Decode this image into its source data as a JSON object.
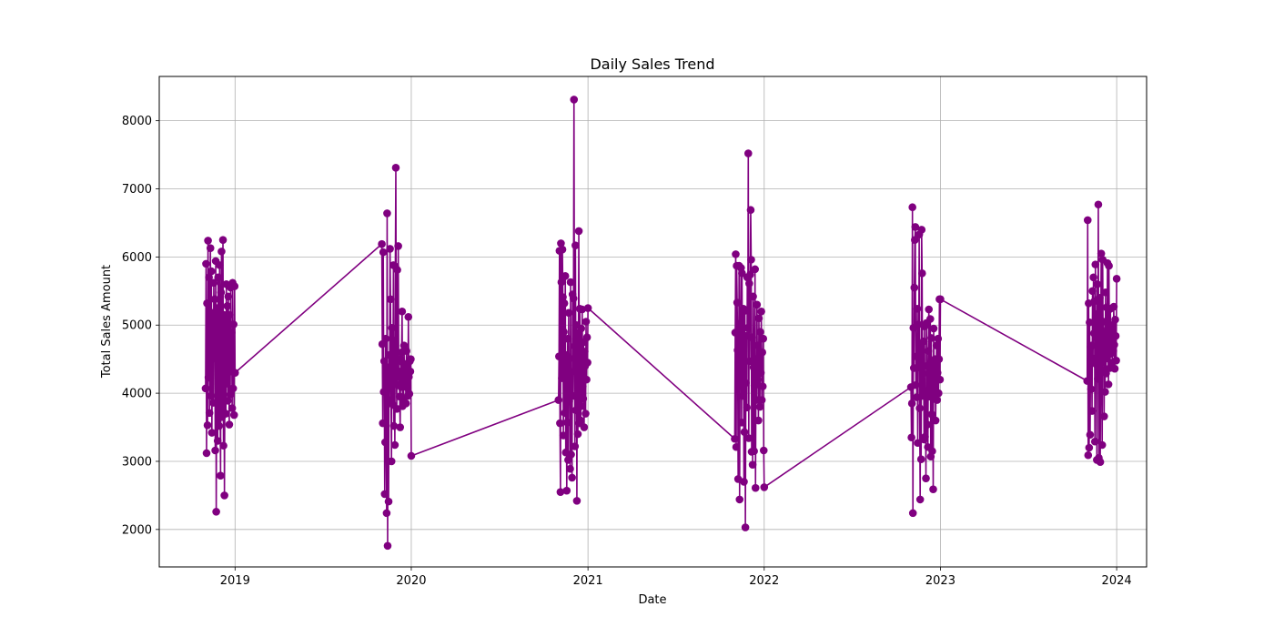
{
  "chart_data": {
    "type": "line",
    "title": "Daily Sales Trend",
    "xlabel": "Date",
    "ylabel": "Total Sales Amount",
    "grid": true,
    "legend": "none",
    "color": "#800080",
    "marker": "circle",
    "xlim": [
      "2018-07-28",
      "2024-03-03"
    ],
    "ylim": [
      1450,
      8650
    ],
    "x_ticks": [
      "2019",
      "2020",
      "2021",
      "2022",
      "2023",
      "2024"
    ],
    "y_ticks": [
      2000,
      3000,
      4000,
      5000,
      6000,
      7000,
      8000
    ],
    "series": [
      {
        "x": [
          "2018-11-01",
          "2018-11-02",
          "2018-11-03",
          "2018-11-04",
          "2018-11-05",
          "2018-11-06",
          "2018-11-07",
          "2018-11-08",
          "2018-11-09",
          "2018-11-10",
          "2018-11-11",
          "2018-11-12",
          "2018-11-13",
          "2018-11-14",
          "2018-11-15",
          "2018-11-16",
          "2018-11-17",
          "2018-11-18",
          "2018-11-19",
          "2018-11-20",
          "2018-11-21",
          "2018-11-22",
          "2018-11-23",
          "2018-11-24",
          "2018-11-25",
          "2018-11-26",
          "2018-11-27",
          "2018-11-28",
          "2018-11-29",
          "2018-11-30",
          "2018-12-01",
          "2018-12-02",
          "2018-12-03",
          "2018-12-04",
          "2018-12-05",
          "2018-12-06",
          "2018-12-07",
          "2018-12-08",
          "2018-12-09",
          "2018-12-10",
          "2018-12-11",
          "2018-12-12",
          "2018-12-13",
          "2018-12-14",
          "2018-12-15",
          "2018-12-16",
          "2018-12-17",
          "2018-12-18",
          "2018-12-19",
          "2018-12-20",
          "2018-12-21",
          "2018-12-22",
          "2018-12-23",
          "2018-12-24",
          "2018-12-25",
          "2018-12-26",
          "2018-12-27",
          "2018-12-28",
          "2018-12-29",
          "2018-12-30",
          "2018-12-31",
          "2019-01-01",
          "2019-11-01",
          "2019-11-02",
          "2019-11-03",
          "2019-11-04",
          "2019-11-05",
          "2019-11-06",
          "2019-11-07",
          "2019-11-08",
          "2019-11-09",
          "2019-11-10",
          "2019-11-11",
          "2019-11-12",
          "2019-11-13",
          "2019-11-14",
          "2019-11-15",
          "2019-11-16",
          "2019-11-17",
          "2019-11-18",
          "2019-11-19",
          "2019-11-20",
          "2019-11-21",
          "2019-11-22",
          "2019-11-23",
          "2019-11-24",
          "2019-11-25",
          "2019-11-26",
          "2019-11-27",
          "2019-11-28",
          "2019-11-29",
          "2019-11-30",
          "2019-12-01",
          "2019-12-02",
          "2019-12-03",
          "2019-12-04",
          "2019-12-05",
          "2019-12-06",
          "2019-12-07",
          "2019-12-08",
          "2019-12-09",
          "2019-12-10",
          "2019-12-11",
          "2019-12-12",
          "2019-12-13",
          "2019-12-14",
          "2019-12-15",
          "2019-12-16",
          "2019-12-17",
          "2019-12-18",
          "2019-12-19",
          "2019-12-20",
          "2019-12-21",
          "2019-12-22",
          "2019-12-23",
          "2019-12-24",
          "2019-12-25",
          "2019-12-26",
          "2019-12-27",
          "2019-12-28",
          "2019-12-29",
          "2019-12-30",
          "2019-12-31",
          "2020-01-01",
          "2020-11-01",
          "2020-11-02",
          "2020-11-03",
          "2020-11-04",
          "2020-11-05",
          "2020-11-06",
          "2020-11-07",
          "2020-11-08",
          "2020-11-09",
          "2020-11-10",
          "2020-11-11",
          "2020-11-12",
          "2020-11-13",
          "2020-11-14",
          "2020-11-15",
          "2020-11-16",
          "2020-11-17",
          "2020-11-18",
          "2020-11-19",
          "2020-11-20",
          "2020-11-21",
          "2020-11-22",
          "2020-11-23",
          "2020-11-24",
          "2020-11-25",
          "2020-11-26",
          "2020-11-27",
          "2020-11-28",
          "2020-11-29",
          "2020-11-30",
          "2020-12-01",
          "2020-12-02",
          "2020-12-03",
          "2020-12-04",
          "2020-12-05",
          "2020-12-06",
          "2020-12-07",
          "2020-12-08",
          "2020-12-09",
          "2020-12-10",
          "2020-12-11",
          "2020-12-12",
          "2020-12-13",
          "2020-12-14",
          "2020-12-15",
          "2020-12-16",
          "2020-12-17",
          "2020-12-18",
          "2020-12-19",
          "2020-12-20",
          "2020-12-21",
          "2020-12-22",
          "2020-12-23",
          "2020-12-24",
          "2020-12-25",
          "2020-12-26",
          "2020-12-27",
          "2020-12-28",
          "2020-12-29",
          "2020-12-30",
          "2020-12-31",
          "2021-01-01",
          "2021-11-01",
          "2021-11-02",
          "2021-11-03",
          "2021-11-04",
          "2021-11-05",
          "2021-11-06",
          "2021-11-07",
          "2021-11-08",
          "2021-11-09",
          "2021-11-10",
          "2021-11-11",
          "2021-11-12",
          "2021-11-13",
          "2021-11-14",
          "2021-11-15",
          "2021-11-16",
          "2021-11-17",
          "2021-11-18",
          "2021-11-19",
          "2021-11-20",
          "2021-11-21",
          "2021-11-22",
          "2021-11-23",
          "2021-11-24",
          "2021-11-25",
          "2021-11-26",
          "2021-11-27",
          "2021-11-28",
          "2021-11-29",
          "2021-11-30",
          "2021-12-01",
          "2021-12-02",
          "2021-12-03",
          "2021-12-04",
          "2021-12-05",
          "2021-12-06",
          "2021-12-07",
          "2021-12-08",
          "2021-12-09",
          "2021-12-10",
          "2021-12-11",
          "2021-12-12",
          "2021-12-13",
          "2021-12-14",
          "2021-12-15",
          "2021-12-16",
          "2021-12-17",
          "2021-12-18",
          "2021-12-19",
          "2021-12-20",
          "2021-12-21",
          "2021-12-22",
          "2021-12-23",
          "2021-12-24",
          "2021-12-25",
          "2021-12-26",
          "2021-12-27",
          "2021-12-28",
          "2021-12-29",
          "2021-12-30",
          "2021-12-31",
          "2022-01-01",
          "2022-11-01",
          "2022-11-02",
          "2022-11-03",
          "2022-11-04",
          "2022-11-05",
          "2022-11-06",
          "2022-11-07",
          "2022-11-08",
          "2022-11-09",
          "2022-11-10",
          "2022-11-11",
          "2022-11-12",
          "2022-11-13",
          "2022-11-14",
          "2022-11-15",
          "2022-11-16",
          "2022-11-17",
          "2022-11-18",
          "2022-11-19",
          "2022-11-20",
          "2022-11-21",
          "2022-11-22",
          "2022-11-23",
          "2022-11-24",
          "2022-11-25",
          "2022-11-26",
          "2022-11-27",
          "2022-11-28",
          "2022-11-29",
          "2022-11-30",
          "2022-12-01",
          "2022-12-02",
          "2022-12-03",
          "2022-12-04",
          "2022-12-05",
          "2022-12-06",
          "2022-12-07",
          "2022-12-08",
          "2022-12-09",
          "2022-12-10",
          "2022-12-11",
          "2022-12-12",
          "2022-12-13",
          "2022-12-14",
          "2022-12-15",
          "2022-12-16",
          "2022-12-17",
          "2022-12-18",
          "2022-12-19",
          "2022-12-20",
          "2022-12-21",
          "2022-12-22",
          "2022-12-23",
          "2022-12-24",
          "2022-12-25",
          "2022-12-26",
          "2022-12-27",
          "2022-12-28",
          "2022-12-29",
          "2022-12-30",
          "2022-12-31",
          "2023-01-01",
          "2023-11-01",
          "2023-11-02",
          "2023-11-03",
          "2023-11-04",
          "2023-11-05",
          "2023-11-06",
          "2023-11-07",
          "2023-11-08",
          "2023-11-09",
          "2023-11-10",
          "2023-11-11",
          "2023-11-12",
          "2023-11-13",
          "2023-11-14",
          "2023-11-15",
          "2023-11-16",
          "2023-11-17",
          "2023-11-18",
          "2023-11-19",
          "2023-11-20",
          "2023-11-21",
          "2023-11-22",
          "2023-11-23",
          "2023-11-24",
          "2023-11-25",
          "2023-11-26",
          "2023-11-27",
          "2023-11-28",
          "2023-11-29",
          "2023-11-30",
          "2023-12-01",
          "2023-12-02",
          "2023-12-03",
          "2023-12-04",
          "2023-12-05",
          "2023-12-06",
          "2023-12-07",
          "2023-12-08",
          "2023-12-09",
          "2023-12-10",
          "2023-12-11",
          "2023-12-12",
          "2023-12-13",
          "2023-12-14",
          "2023-12-15",
          "2023-12-16",
          "2023-12-17",
          "2023-12-18",
          "2023-12-19",
          "2023-12-20",
          "2023-12-21",
          "2023-12-22",
          "2023-12-23",
          "2023-12-24",
          "2023-12-25",
          "2023-12-26",
          "2023-12-27",
          "2023-12-28",
          "2023-12-29",
          "2023-12-30",
          "2023-12-31",
          "2024-01-01"
        ],
        "y": [
          4070,
          5900,
          3120,
          5320,
          3530,
          6240,
          4230,
          5700,
          3710,
          4880,
          6130,
          3960,
          5790,
          3420,
          4660,
          5180,
          3860,
          5620,
          4950,
          5380,
          3160,
          5940,
          2260,
          4500,
          5250,
          3300,
          5700,
          4820,
          3520,
          5880,
          4060,
          2790,
          5480,
          6080,
          3650,
          4980,
          6250,
          3230,
          5150,
          2500,
          4400,
          5090,
          3700,
          5600,
          4140,
          5280,
          3890,
          5420,
          4700,
          3540,
          5150,
          3980,
          5550,
          4320,
          4890,
          3780,
          5620,
          4070,
          5010,
          3680,
          5570,
          4300,
          6190,
          4720,
          3560,
          6070,
          4020,
          4470,
          2520,
          3280,
          4800,
          4390,
          2240,
          6640,
          1760,
          4290,
          2410,
          4560,
          3900,
          6120,
          5380,
          4120,
          3000,
          4960,
          4190,
          3830,
          5880,
          3520,
          4770,
          3240,
          5860,
          7310,
          4460,
          3770,
          5810,
          4120,
          6160,
          4320,
          4240,
          3950,
          3500,
          4500,
          4090,
          4600,
          5200,
          3810,
          4440,
          3900,
          4700,
          4100,
          4260,
          4300,
          3850,
          4620,
          4390,
          4080,
          3960,
          5120,
          4240,
          3990,
          4470,
          4320,
          4500,
          3080,
          3900,
          4540,
          6090,
          3560,
          2550,
          6200,
          5630,
          4220,
          6110,
          5410,
          3380,
          4900,
          5320,
          3710,
          5720,
          3130,
          4560,
          2570,
          3570,
          4800,
          3020,
          5180,
          3880,
          4510,
          2890,
          5630,
          3100,
          4310,
          2760,
          5450,
          3960,
          5390,
          8310,
          4690,
          3220,
          6170,
          3750,
          5000,
          2420,
          4880,
          3400,
          4300,
          6380,
          3560,
          5240,
          4450,
          3600,
          4950,
          3810,
          5230,
          4100,
          3920,
          4750,
          3500,
          4610,
          4400,
          3700,
          5050,
          4200,
          4820,
          4450,
          5250,
          3330,
          4890,
          6040,
          3210,
          5870,
          5330,
          4630,
          2740,
          4190,
          5870,
          2440,
          4590,
          5030,
          5840,
          3570,
          5760,
          3960,
          4610,
          5240,
          2700,
          3430,
          5210,
          2030,
          4150,
          4840,
          3790,
          5700,
          4960,
          7520,
          3340,
          5610,
          4470,
          5740,
          6690,
          5960,
          3140,
          4820,
          2950,
          5420,
          4380,
          3150,
          4110,
          5820,
          2610,
          4500,
          3900,
          5300,
          4200,
          4700,
          3600,
          5100,
          4400,
          3800,
          4900,
          4300,
          5200,
          3900,
          4600,
          4100,
          4800,
          3160,
          2620,
          4090,
          3350,
          3850,
          6730,
          2240,
          4960,
          4370,
          5550,
          6250,
          6440,
          4120,
          4540,
          3940,
          5240,
          3270,
          5010,
          4380,
          6330,
          3780,
          2440,
          4690,
          3030,
          6400,
          5760,
          3960,
          4290,
          4760,
          3320,
          4980,
          3360,
          3970,
          2750,
          5030,
          4400,
          3540,
          3210,
          4620,
          5230,
          3950,
          4060,
          5090,
          3070,
          4810,
          3690,
          3150,
          4420,
          2590,
          4950,
          3970,
          4370,
          4500,
          3600,
          4200,
          4700,
          3900,
          4300,
          4800,
          4000,
          4500,
          5380,
          4200,
          5380,
          4180,
          6540,
          3090,
          5320,
          3200,
          5040,
          3390,
          4680,
          4060,
          4700,
          3740,
          5500,
          4510,
          5700,
          4880,
          5350,
          3290,
          5890,
          4430,
          5160,
          3020,
          5600,
          4210,
          6770,
          3050,
          4630,
          5400,
          2990,
          4960,
          6050,
          4340,
          3240,
          5960,
          4720,
          5050,
          3660,
          4900,
          4020,
          5480,
          4290,
          5260,
          4510,
          5910,
          4780,
          4130,
          5870,
          4600,
          4370,
          5240,
          4580,
          4750,
          5000,
          4450,
          4910,
          4620,
          5270,
          4710,
          4360,
          5080,
          4840,
          4480,
          5680
        ]
      }
    ]
  }
}
